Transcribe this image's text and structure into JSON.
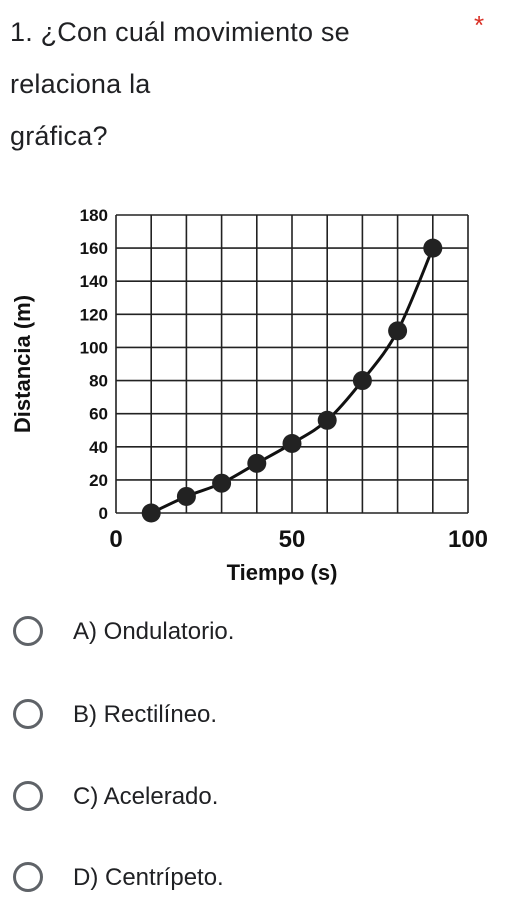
{
  "question": {
    "number_and_text_line1": "1. ¿Con cuál movimiento se",
    "text_line2": "relaciona la",
    "text_line3": "gráfica?",
    "required_marker": "*"
  },
  "chart_data": {
    "type": "line",
    "xlabel": "Tiempo (s)",
    "ylabel": "Distancia (m)",
    "xlim": [
      0,
      100
    ],
    "ylim": [
      0,
      180
    ],
    "x_ticks": [
      "0",
      "50",
      "100"
    ],
    "y_ticks": [
      "0",
      "20",
      "40",
      "60",
      "80",
      "100",
      "120",
      "140",
      "160",
      "180"
    ],
    "grid": true,
    "series": [
      {
        "x": [
          10,
          20,
          30,
          40,
          50,
          60,
          70,
          80,
          90
        ],
        "y": [
          0,
          10,
          18,
          30,
          42,
          56,
          80,
          110,
          160
        ]
      }
    ],
    "colors": {
      "line": "#111111",
      "grid": "#222222",
      "point": "#222222"
    }
  },
  "options": [
    {
      "label": "A) Ondulatorio."
    },
    {
      "label": "B) Rectilíneo."
    },
    {
      "label": "C) Acelerado."
    },
    {
      "label": "D) Centrípeto."
    }
  ],
  "colors": {
    "required": "#d93025",
    "radio_border": "#5f6368",
    "text": "#202124"
  }
}
